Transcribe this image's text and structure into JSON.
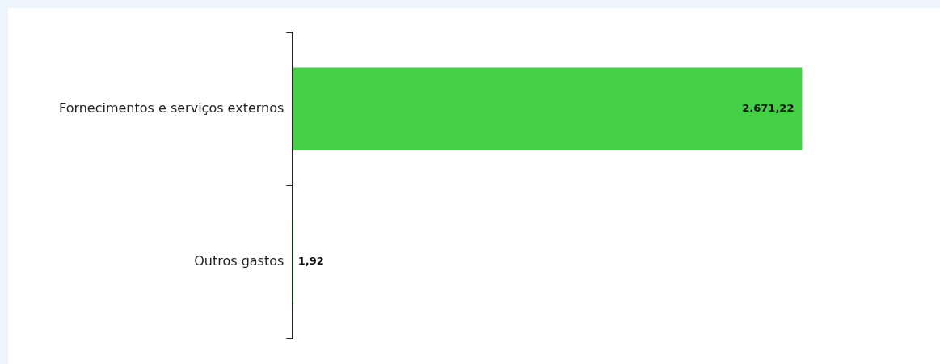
{
  "chart_data": {
    "type": "bar",
    "orientation": "horizontal",
    "categories": [
      "Fornecimentos e serviços externos",
      "Outros gastos"
    ],
    "values": [
      2671.22,
      1.92
    ],
    "color": "#44d044",
    "value_labels": [
      "2.671,22",
      "1,92"
    ],
    "legend": false
  }
}
